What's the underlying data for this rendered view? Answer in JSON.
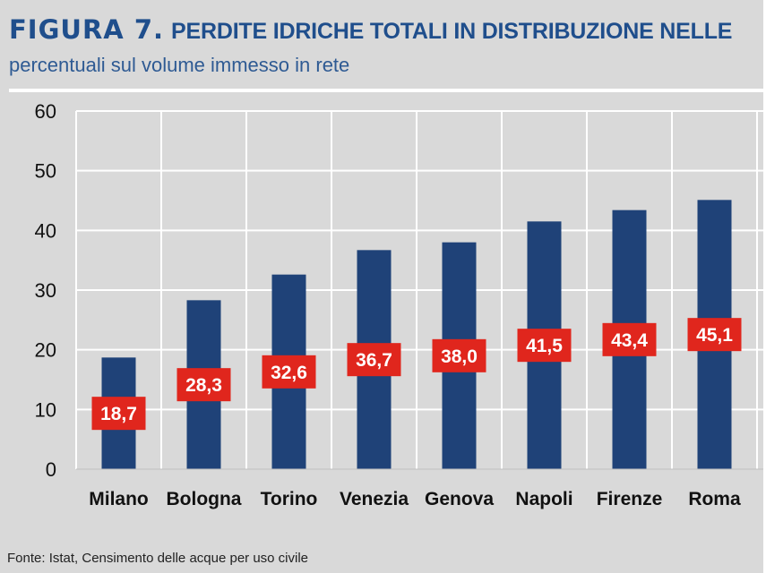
{
  "header": {
    "figure_label": "FIGURA 7.",
    "title": "PERDITE IDRICHE TOTALI IN DISTRIBUZIONE NELLE",
    "subtitle": "percentuali sul volume immesso in rete"
  },
  "footer": {
    "source": "Fonte: Istat, Censimento delle acque per uso civile"
  },
  "colors": {
    "background": "#d9d9d9",
    "bar": "#1f4278",
    "label_box": "#e0261d",
    "title": "#1f4e8c",
    "grid": "#ffffff"
  },
  "chart_data": {
    "type": "bar",
    "title": "PERDITE IDRICHE TOTALI IN DISTRIBUZIONE NELLE",
    "subtitle": "percentuali sul volume immesso in rete",
    "categories": [
      "Milano",
      "Bologna",
      "Torino",
      "Venezia",
      "Genova",
      "Napoli",
      "Firenze",
      "Roma"
    ],
    "values": [
      18.7,
      28.3,
      32.6,
      36.7,
      38.0,
      41.5,
      43.4,
      45.1
    ],
    "value_labels": [
      "18,7",
      "28,3",
      "32,6",
      "36,7",
      "38,0",
      "41,5",
      "43,4",
      "45,1"
    ],
    "xlabel": "",
    "ylabel": "",
    "ylim": [
      0,
      60
    ],
    "yticks": [
      "0",
      "10",
      "20",
      "30",
      "40",
      "50",
      "60"
    ],
    "grid": true
  }
}
